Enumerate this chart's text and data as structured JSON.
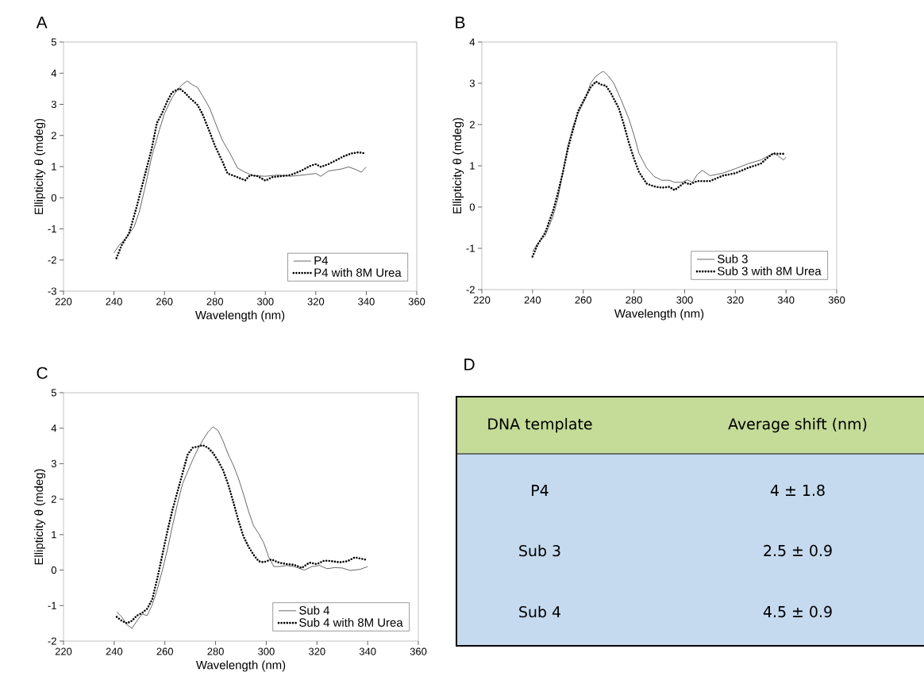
{
  "chart_data": [
    {
      "type": "line",
      "title": "A",
      "xlabel": "Wavelength (nm)",
      "ylabel": "Ellipticity θ (mdeg)",
      "xlim": [
        220,
        360
      ],
      "xticks": [
        220,
        240,
        260,
        280,
        300,
        320,
        340,
        360
      ],
      "ylim": [
        -3,
        5
      ],
      "yticks": [
        -3,
        -2,
        -1,
        0,
        1,
        2,
        3,
        4,
        5
      ],
      "legend": "bottom right",
      "series": [
        {
          "name": "P4",
          "color": "#000000",
          "line_style": "solid",
          "x": [
            240,
            242,
            245,
            248,
            250,
            252,
            255,
            258,
            260,
            263,
            265,
            267,
            269,
            271,
            273,
            275,
            278,
            280,
            283,
            286,
            289,
            292,
            295,
            300,
            305,
            310,
            315,
            320,
            322,
            325,
            330,
            333,
            336,
            338,
            340
          ],
          "values": [
            -1.77,
            -1.53,
            -1.27,
            -0.93,
            -0.46,
            0.22,
            1.33,
            2.18,
            2.7,
            3.21,
            3.45,
            3.63,
            3.75,
            3.63,
            3.55,
            3.29,
            2.87,
            2.44,
            1.84,
            1.42,
            0.95,
            0.82,
            0.71,
            0.69,
            0.73,
            0.69,
            0.73,
            0.78,
            0.69,
            0.86,
            0.92,
            0.99,
            0.9,
            0.82,
            0.99
          ]
        },
        {
          "name": "P4 with 8M Urea",
          "color": "#000000",
          "line_style": "dotted",
          "x": [
            241,
            243,
            246,
            249,
            252,
            255,
            257,
            259,
            261,
            263,
            266,
            268,
            270,
            273,
            275,
            278,
            280,
            283,
            285,
            288,
            292,
            294,
            297,
            300,
            303,
            306,
            310,
            314,
            318,
            320,
            322,
            325,
            328,
            331,
            334,
            337,
            339
          ],
          "values": [
            -1.94,
            -1.53,
            -1.14,
            -0.29,
            0.65,
            1.59,
            2.4,
            2.7,
            3.08,
            3.38,
            3.51,
            3.38,
            3.21,
            2.99,
            2.7,
            2.1,
            1.67,
            1.16,
            0.78,
            0.69,
            0.56,
            0.73,
            0.69,
            0.55,
            0.67,
            0.69,
            0.73,
            0.86,
            1.03,
            1.08,
            0.99,
            1.08,
            1.2,
            1.33,
            1.42,
            1.46,
            1.43
          ]
        }
      ]
    },
    {
      "type": "line",
      "title": "B",
      "xlabel": "Wavelength (nm)",
      "ylabel": "Ellipticity θ (mdeg)",
      "xlim": [
        220,
        360
      ],
      "xticks": [
        220,
        240,
        260,
        280,
        300,
        320,
        340,
        360
      ],
      "ylim": [
        -2,
        4
      ],
      "yticks": [
        -2,
        -1,
        0,
        1,
        2,
        3,
        4
      ],
      "legend": "bottom right",
      "series": [
        {
          "name": "Sub 3",
          "color": "#000000",
          "line_style": "solid",
          "x": [
            240,
            242,
            245,
            248,
            250,
            252,
            254,
            256,
            258,
            261,
            263,
            265,
            267,
            268,
            270,
            272,
            275,
            278,
            280,
            282,
            285,
            288,
            291,
            294,
            296,
            299,
            301,
            303,
            305,
            307,
            310,
            315,
            320,
            325,
            330,
            333,
            335,
            337,
            339,
            340
          ],
          "values": [
            -1.08,
            -0.88,
            -0.69,
            -0.24,
            0.21,
            0.85,
            1.5,
            1.95,
            2.27,
            2.65,
            3.01,
            3.17,
            3.26,
            3.29,
            3.17,
            3.01,
            2.59,
            2.14,
            1.75,
            1.3,
            0.95,
            0.74,
            0.65,
            0.65,
            0.6,
            0.6,
            0.66,
            0.6,
            0.79,
            0.89,
            0.76,
            0.82,
            0.93,
            1.05,
            1.14,
            1.24,
            1.3,
            1.24,
            1.14,
            1.21
          ]
        },
        {
          "name": "Sub 3 with 8M Urea",
          "color": "#000000",
          "line_style": "dotted",
          "x": [
            240,
            242,
            245,
            248,
            250,
            252,
            254,
            256,
            258,
            261,
            263,
            265,
            267,
            269,
            271,
            274,
            276,
            278,
            280,
            282,
            285,
            288,
            291,
            294,
            296,
            298,
            300,
            302,
            305,
            310,
            315,
            320,
            325,
            330,
            333,
            335,
            338,
            340
          ],
          "values": [
            -1.2,
            -0.91,
            -0.62,
            -0.11,
            0.34,
            0.85,
            1.43,
            1.88,
            2.33,
            2.68,
            2.91,
            3.04,
            2.97,
            2.94,
            2.75,
            2.4,
            2.01,
            1.56,
            1.18,
            0.85,
            0.57,
            0.5,
            0.47,
            0.49,
            0.41,
            0.5,
            0.6,
            0.55,
            0.63,
            0.63,
            0.76,
            0.82,
            0.95,
            1.05,
            1.21,
            1.3,
            1.29,
            1.29
          ]
        }
      ]
    },
    {
      "type": "line",
      "title": "C",
      "xlabel": "Wavelength (nm)",
      "ylabel": "Ellipticity θ (mdeg)",
      "xlim": [
        220,
        360
      ],
      "xticks": [
        220,
        240,
        260,
        280,
        300,
        320,
        340,
        360
      ],
      "ylim": [
        -2,
        5
      ],
      "yticks": [
        -2,
        -1,
        0,
        1,
        2,
        3,
        4,
        5
      ],
      "legend": "bottom right",
      "series": [
        {
          "name": "Sub 4",
          "color": "#000000",
          "line_style": "solid",
          "x": [
            241,
            243,
            245,
            247,
            249,
            251,
            253,
            255,
            257,
            259,
            261,
            263,
            265,
            267,
            269,
            271,
            273,
            275,
            277,
            279,
            281,
            283,
            285,
            287,
            289,
            291,
            293,
            295,
            297,
            299,
            301,
            303,
            305,
            308,
            311,
            315,
            318,
            321,
            324,
            327,
            330,
            333,
            337,
            340
          ],
          "values": [
            -1.18,
            -1.32,
            -1.54,
            -1.64,
            -1.43,
            -1.24,
            -1.28,
            -0.98,
            -0.54,
            -0.01,
            0.58,
            1.25,
            1.88,
            2.44,
            2.78,
            3.11,
            3.41,
            3.67,
            3.89,
            4.04,
            3.93,
            3.63,
            3.26,
            2.96,
            2.59,
            2.14,
            1.66,
            1.25,
            1.03,
            0.77,
            0.36,
            0.1,
            0.1,
            0.13,
            0.1,
            0.0,
            0.1,
            0.13,
            0.04,
            0.07,
            0.06,
            -0.01,
            0.02,
            0.1
          ]
        },
        {
          "name": "Sub 4 with 8M Urea",
          "color": "#000000",
          "line_style": "dotted",
          "x": [
            241,
            243,
            245,
            247,
            249,
            251,
            253,
            255,
            257,
            259,
            261,
            263,
            265,
            267,
            269,
            271,
            273,
            275,
            277,
            279,
            281,
            283,
            285,
            287,
            289,
            291,
            293,
            295,
            297,
            299,
            302,
            305,
            308,
            311,
            314,
            317,
            320,
            323,
            326,
            329,
            332,
            335,
            340
          ],
          "values": [
            -1.32,
            -1.43,
            -1.5,
            -1.43,
            -1.28,
            -1.21,
            -1.09,
            -0.83,
            -0.24,
            0.43,
            1.1,
            1.7,
            2.22,
            2.74,
            3.26,
            3.45,
            3.48,
            3.52,
            3.45,
            3.3,
            3.08,
            2.81,
            2.41,
            1.92,
            1.4,
            0.95,
            0.66,
            0.43,
            0.25,
            0.22,
            0.3,
            0.21,
            0.17,
            0.15,
            0.06,
            0.21,
            0.17,
            0.27,
            0.25,
            0.22,
            0.25,
            0.36,
            0.28
          ]
        }
      ]
    },
    {
      "type": "other",
      "title": "D",
      "annotations": [
        "DNA template",
        "Average shift (nm)",
        "P4",
        "4 ± 1.8",
        "Sub 3",
        "2.5 ± 0.9",
        "Sub 4",
        "4.5 ± 0.9"
      ]
    }
  ]
}
